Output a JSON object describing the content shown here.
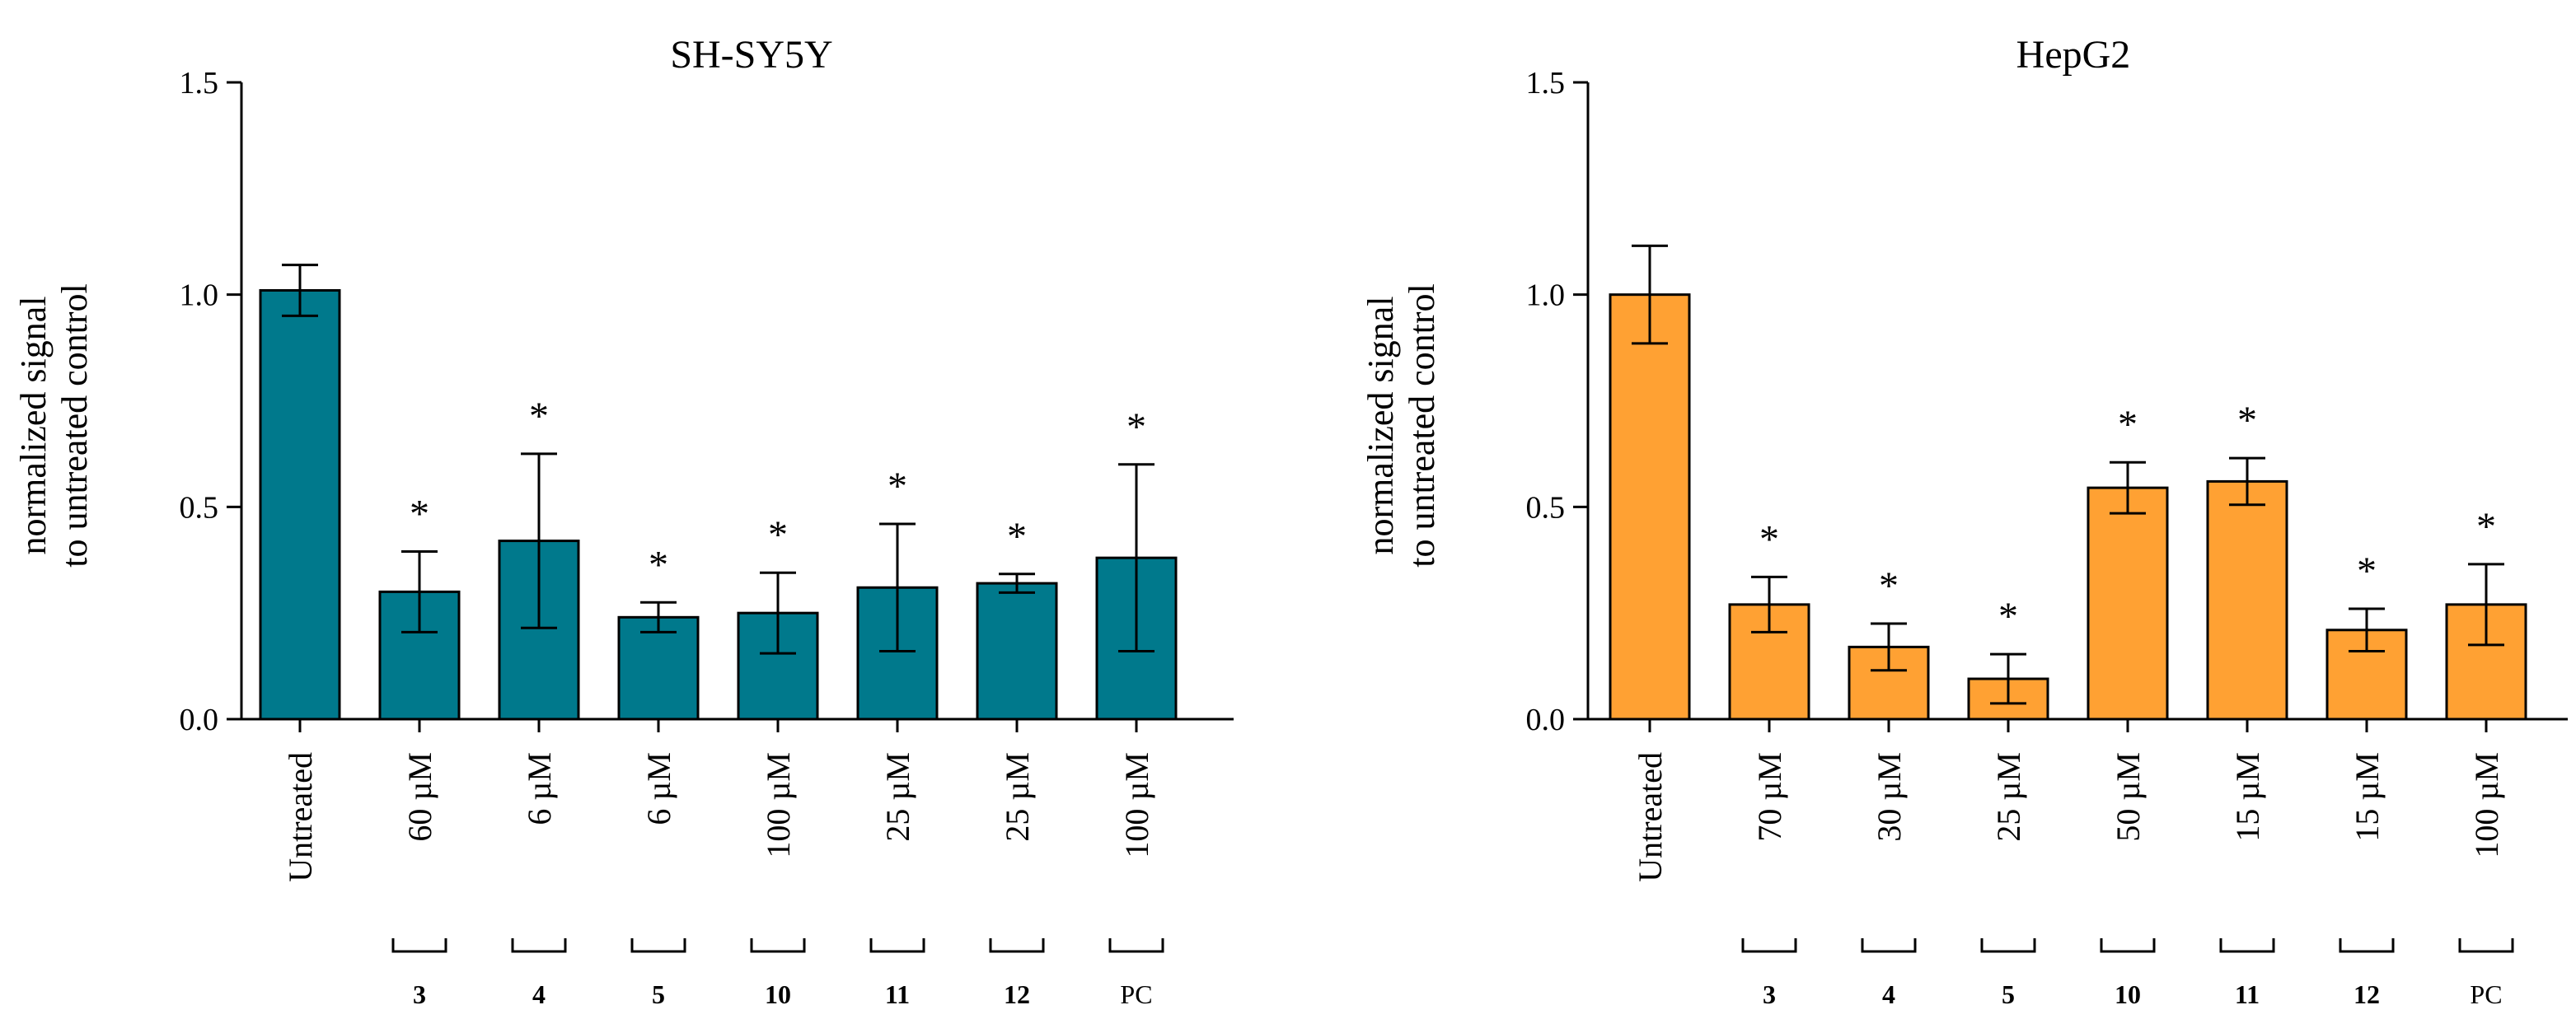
{
  "chart_data": [
    {
      "type": "bar",
      "title": "SH-SY5Y",
      "ylabel_lines": [
        "normalized signal",
        "to untreated control"
      ],
      "ylim": [
        0,
        1.5
      ],
      "yticks": [
        "0.0",
        "0.5",
        "1.0",
        "1.5"
      ],
      "color": "#00798C",
      "categories": [
        "Untreated",
        "60 µM",
        "6 µM",
        "6 µM",
        "100 µM",
        "25 µM",
        "25 µM",
        "100 µM"
      ],
      "compounds": [
        "",
        "3",
        "4",
        "5",
        "10",
        "11",
        "12",
        "PC"
      ],
      "values": [
        1.01,
        0.3,
        0.42,
        0.24,
        0.25,
        0.31,
        0.32,
        0.38
      ],
      "errors": [
        0.06,
        0.095,
        0.205,
        0.035,
        0.095,
        0.15,
        0.022,
        0.22
      ],
      "significance": [
        "",
        "*",
        "*",
        "*",
        "*",
        "*",
        "*",
        "*"
      ]
    },
    {
      "type": "bar",
      "title": "HepG2",
      "ylabel_lines": [
        "normalized signal",
        "to untreated control"
      ],
      "ylim": [
        0,
        1.5
      ],
      "yticks": [
        "0.0",
        "0.5",
        "1.0",
        "1.5"
      ],
      "color": "#FFA133",
      "categories": [
        "Untreated",
        "70 µM",
        "30 µM",
        "25 µM",
        "50 µM",
        "15 µM",
        "15 µM",
        "100 µM"
      ],
      "compounds": [
        "",
        "3",
        "4",
        "5",
        "10",
        "11",
        "12",
        "PC"
      ],
      "values": [
        1.0,
        0.27,
        0.17,
        0.095,
        0.545,
        0.56,
        0.21,
        0.27
      ],
      "errors": [
        0.115,
        0.065,
        0.055,
        0.058,
        0.06,
        0.055,
        0.05,
        0.095
      ],
      "significance": [
        "",
        "*",
        "*",
        "*",
        "*",
        "*",
        "*",
        "*"
      ]
    }
  ]
}
